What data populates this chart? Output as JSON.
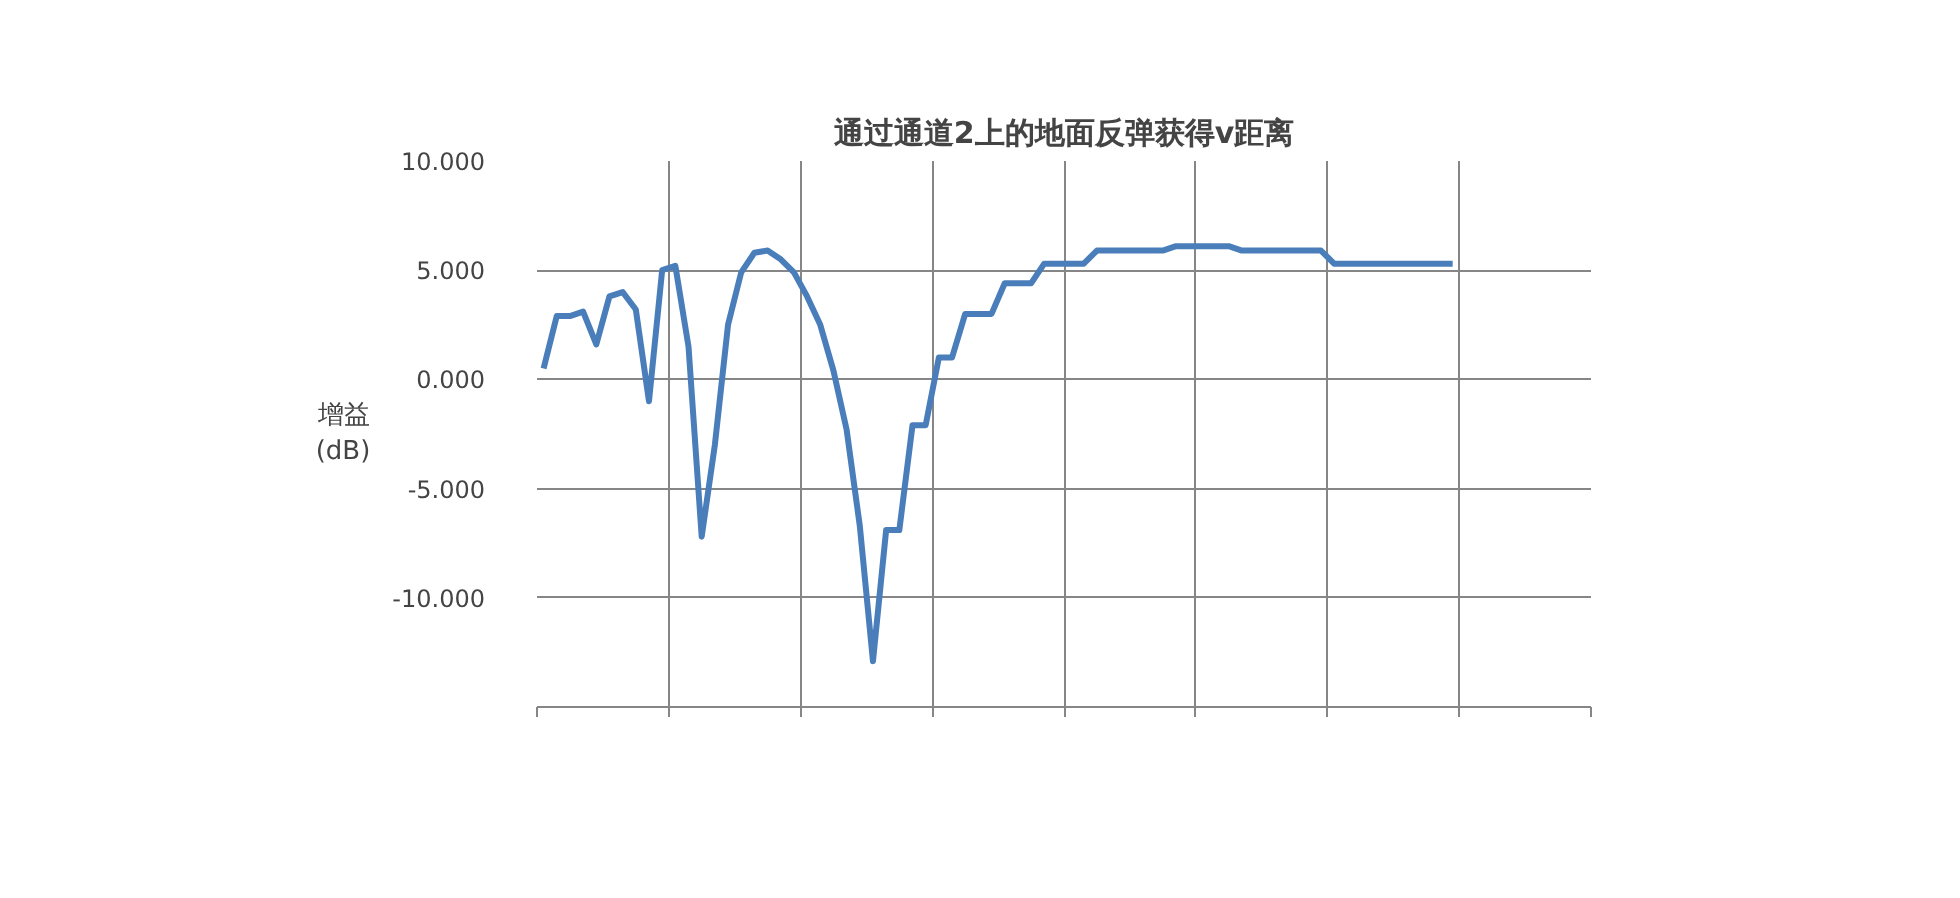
{
  "chart_data": {
    "type": "line",
    "title": "通过通道2上的地面反弹获得v距离",
    "ylabel": "增益\n(dB)",
    "categories": [
      null,
      null,
      null,
      null,
      null,
      null,
      null,
      null,
      null,
      null,
      null,
      null,
      null,
      null,
      null,
      null,
      null,
      null,
      null,
      null,
      null,
      null,
      null,
      null,
      null,
      null,
      null,
      null,
      null,
      null,
      null,
      null,
      null,
      null,
      null,
      null,
      null,
      null,
      null,
      null,
      null,
      null,
      null,
      null,
      null,
      null,
      null,
      null,
      null,
      null,
      null,
      null,
      null,
      null,
      null,
      null,
      null,
      null,
      null,
      null,
      null,
      null,
      null,
      null,
      null,
      null,
      null,
      null,
      null,
      null,
      null,
      null,
      null,
      null,
      null,
      null,
      null,
      null,
      null,
      null
    ],
    "series": [
      {
        "color": "#4a7ebb",
        "values": [
          0.5,
          2.9,
          2.9,
          3.1,
          1.6,
          3.8,
          4.0,
          3.2,
          -1.0,
          5.0,
          5.2,
          1.5,
          -7.2,
          -3.0,
          2.5,
          4.9,
          5.8,
          5.9,
          5.5,
          4.9,
          3.8,
          2.5,
          0.4,
          -2.3,
          -6.7,
          -12.9,
          -6.9,
          -6.9,
          -2.1,
          -2.1,
          1.0,
          1.0,
          3.0,
          3.0,
          3.0,
          4.4,
          4.4,
          4.4,
          5.3,
          5.3,
          5.3,
          5.3,
          5.9,
          5.9,
          5.9,
          5.9,
          5.9,
          5.9,
          6.1,
          6.1,
          6.1,
          6.1,
          6.1,
          5.9,
          5.9,
          5.9,
          5.9,
          5.9,
          5.9,
          5.9,
          5.3,
          5.3,
          5.3,
          5.3,
          5.3,
          5.3,
          5.3,
          5.3,
          5.3,
          5.3,
          null,
          null,
          null,
          null,
          null,
          null,
          null,
          null,
          null,
          null
        ]
      }
    ],
    "ylim": [
      -15,
      10
    ],
    "yticks": [
      {
        "value": 10,
        "label": "10.000"
      },
      {
        "value": 5,
        "label": "5.000"
      },
      {
        "value": 0,
        "label": "0.000"
      },
      {
        "value": -5,
        "label": "-5.000"
      },
      {
        "value": -10,
        "label": "-10.000"
      },
      {
        "value": -15,
        "label": null
      }
    ],
    "grid": true,
    "marker": "none",
    "line_style": "solid"
  }
}
